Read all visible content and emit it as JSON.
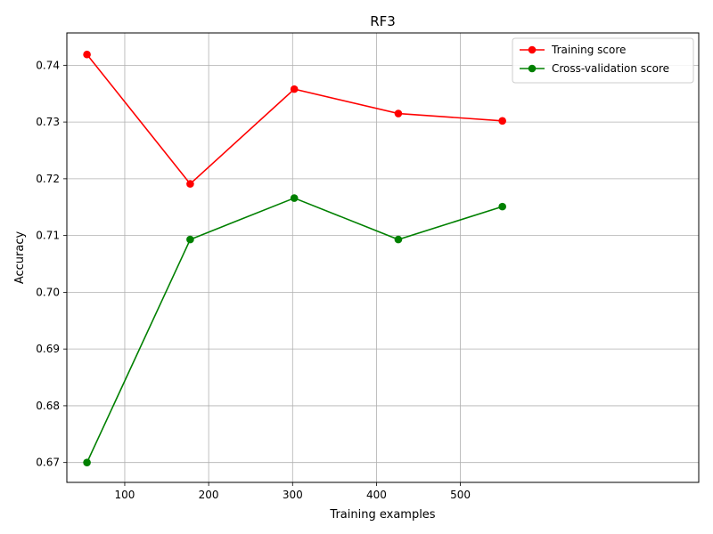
{
  "chart_data": {
    "type": "line",
    "title": "RF3",
    "xlabel": "Training examples",
    "ylabel": "Accuracy",
    "xlim": [
      31,
      784
    ],
    "ylim": [
      0.6665,
      0.7457
    ],
    "xticks": [
      100,
      200,
      300,
      400,
      500
    ],
    "xtick_labels": [
      "100",
      "200",
      "300",
      "400",
      "500"
    ],
    "yticks": [
      0.67,
      0.68,
      0.69,
      0.7,
      0.71,
      0.72,
      0.73,
      0.74
    ],
    "ytick_labels": [
      "0.67",
      "0.68",
      "0.69",
      "0.70",
      "0.71",
      "0.72",
      "0.73",
      "0.74"
    ],
    "grid": true,
    "legend_position": "top-right",
    "x": [
      55,
      178,
      302,
      426,
      550
    ],
    "series": [
      {
        "name": "Training score",
        "color": "#ff0000",
        "values": [
          0.7419,
          0.7191,
          0.7358,
          0.7315,
          0.7302
        ]
      },
      {
        "name": "Cross-validation score",
        "color": "#008000",
        "values": [
          0.67,
          0.7093,
          0.7166,
          0.7093,
          0.7151
        ]
      }
    ]
  }
}
